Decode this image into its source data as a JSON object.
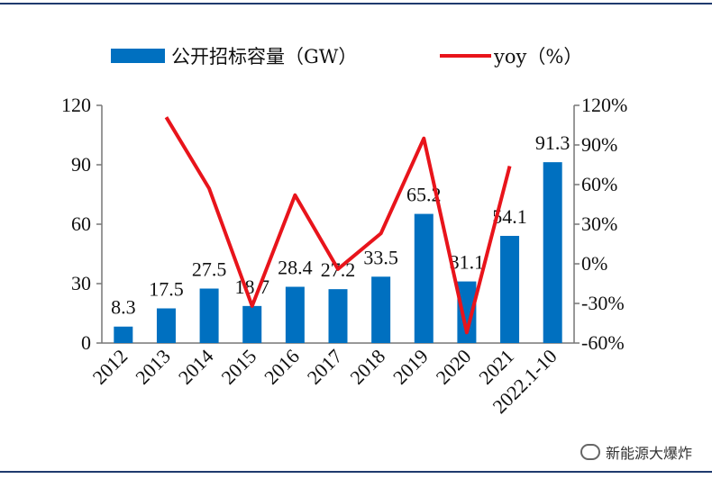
{
  "chart_data": {
    "type": "bar+line",
    "categories": [
      "2012",
      "2013",
      "2014",
      "2015",
      "2016",
      "2017",
      "2018",
      "2019",
      "2020",
      "2021",
      "2022.1-10"
    ],
    "series": [
      {
        "name": "公开招标容量（GW）",
        "type": "bar",
        "axis": "left",
        "values": [
          8.3,
          17.5,
          27.5,
          18.7,
          28.4,
          27.2,
          33.5,
          65.2,
          31.1,
          54.1,
          91.3
        ],
        "labels": [
          "8.3",
          "17.5",
          "27.5",
          "18.7",
          "28.4",
          "27.2",
          "33.5",
          "65.2",
          "31.1",
          "54.1",
          "91.3"
        ]
      },
      {
        "name": "yoy（%）",
        "type": "line",
        "axis": "right",
        "values": [
          null,
          111,
          57,
          -32,
          52,
          -4,
          23,
          95,
          -52,
          74,
          null
        ]
      }
    ],
    "left_axis": {
      "min": 0,
      "max": 120,
      "ticks": [
        "0",
        "30",
        "60",
        "90",
        "120"
      ]
    },
    "right_axis": {
      "min": -60,
      "max": 120,
      "ticks": [
        "-60%",
        "-30%",
        "0%",
        "30%",
        "60%",
        "90%",
        "120%"
      ]
    },
    "legend": [
      "公开招标容量（GW）",
      "yoy（%）"
    ],
    "legend_position": "top",
    "colors": {
      "bar": "#0070C0",
      "line": "#E8141B"
    }
  },
  "watermark": "新能源大爆炸"
}
